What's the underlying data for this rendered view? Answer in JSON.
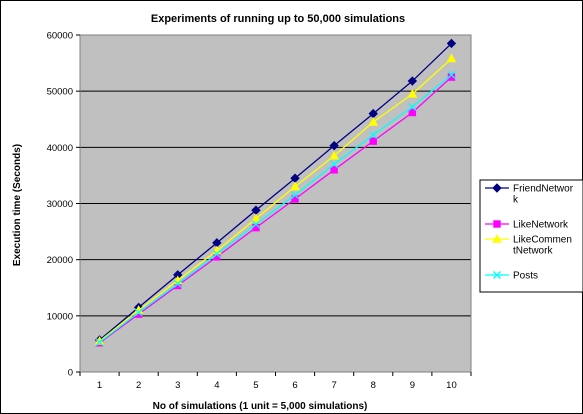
{
  "chart_data": {
    "type": "line",
    "title": "Experiments of running up to 50,000 simulations",
    "xlabel": "No of simulations (1 unit = 5,000 simulations)",
    "ylabel": "Execution time (Seconds)",
    "categories": [
      "1",
      "2",
      "3",
      "4",
      "5",
      "6",
      "7",
      "8",
      "9",
      "10"
    ],
    "ylim": [
      0,
      60000
    ],
    "yticks": [
      0,
      10000,
      20000,
      30000,
      40000,
      50000,
      60000
    ],
    "grid": true,
    "legend_position": "right",
    "plot_background": "#c0c0c0",
    "series": [
      {
        "name": "FriendNetwor\nk",
        "color": "#000080",
        "marker": "diamond",
        "values": [
          5700,
          11500,
          17300,
          23000,
          28800,
          34500,
          40300,
          46000,
          51800,
          58500
        ]
      },
      {
        "name": "LikeNetwork",
        "color": "#ff00ff",
        "marker": "square",
        "values": [
          5200,
          10300,
          15400,
          20500,
          25700,
          30800,
          36000,
          41100,
          46200,
          52500
        ]
      },
      {
        "name": "LikeCommen\ntNetwork",
        "color": "#ffff00",
        "marker": "triangle",
        "values": [
          5500,
          11000,
          16300,
          21600,
          27300,
          33000,
          38500,
          44500,
          49500,
          55800
        ]
      },
      {
        "name": "Posts",
        "color": "#00ffff",
        "marker": "x",
        "values": [
          5300,
          10600,
          15700,
          21000,
          26300,
          31500,
          37000,
          42200,
          47200,
          52900
        ]
      }
    ]
  }
}
